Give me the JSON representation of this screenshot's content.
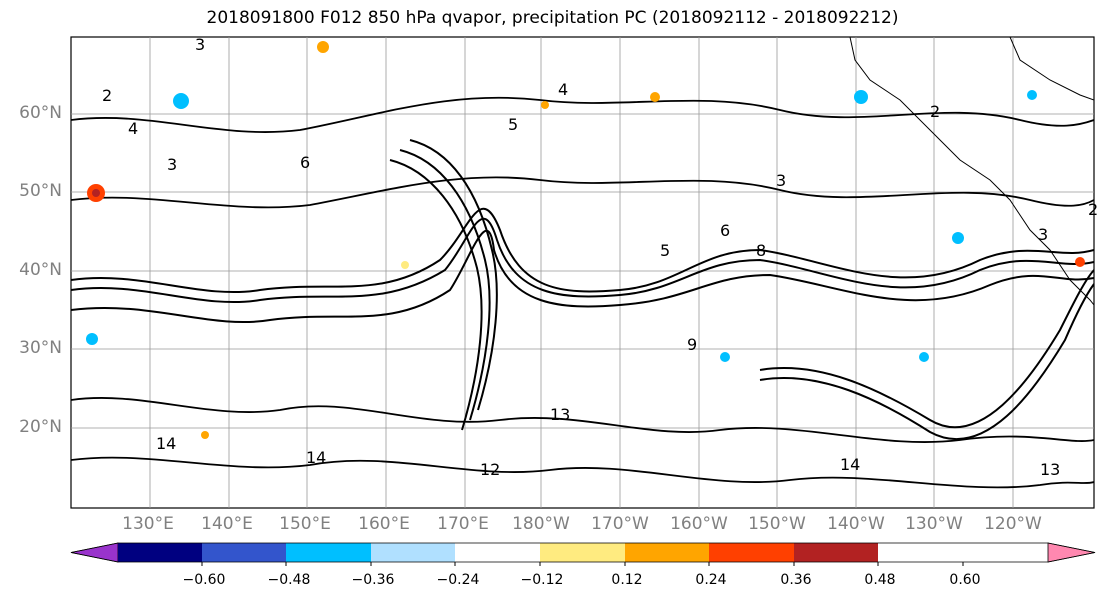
{
  "title": "2018091800 F012 850 hPa qvapor, precipitation PC (2018092112 - 2018092212)",
  "lat_labels": [
    "60°N",
    "50°N",
    "40°N",
    "30°N",
    "20°N"
  ],
  "lon_labels": [
    "130°E",
    "140°E",
    "150°E",
    "160°E",
    "170°E",
    "180°W",
    "170°W",
    "160°W",
    "150°W",
    "140°W",
    "130°W",
    "120°W"
  ],
  "colorbar": {
    "colors": [
      "#9933cc",
      "#000080",
      "#3355cc",
      "#00bfff",
      "#b0e0ff",
      "#ffffff",
      "#ffeb80",
      "#ffa500",
      "#ff4000",
      "#b22222",
      "#ff88b0"
    ],
    "tick_labels": [
      "−0.60",
      "−0.48",
      "−0.36",
      "−0.24",
      "−0.12",
      "0.12",
      "0.24",
      "0.36",
      "0.48",
      "0.60"
    ]
  },
  "contour_labels": [
    "3",
    "2",
    "4",
    "3",
    "6",
    "5",
    "4",
    "3",
    "2",
    "3",
    "5",
    "6",
    "8",
    "9",
    "13",
    "12",
    "14",
    "14",
    "14",
    "13",
    "2"
  ]
}
